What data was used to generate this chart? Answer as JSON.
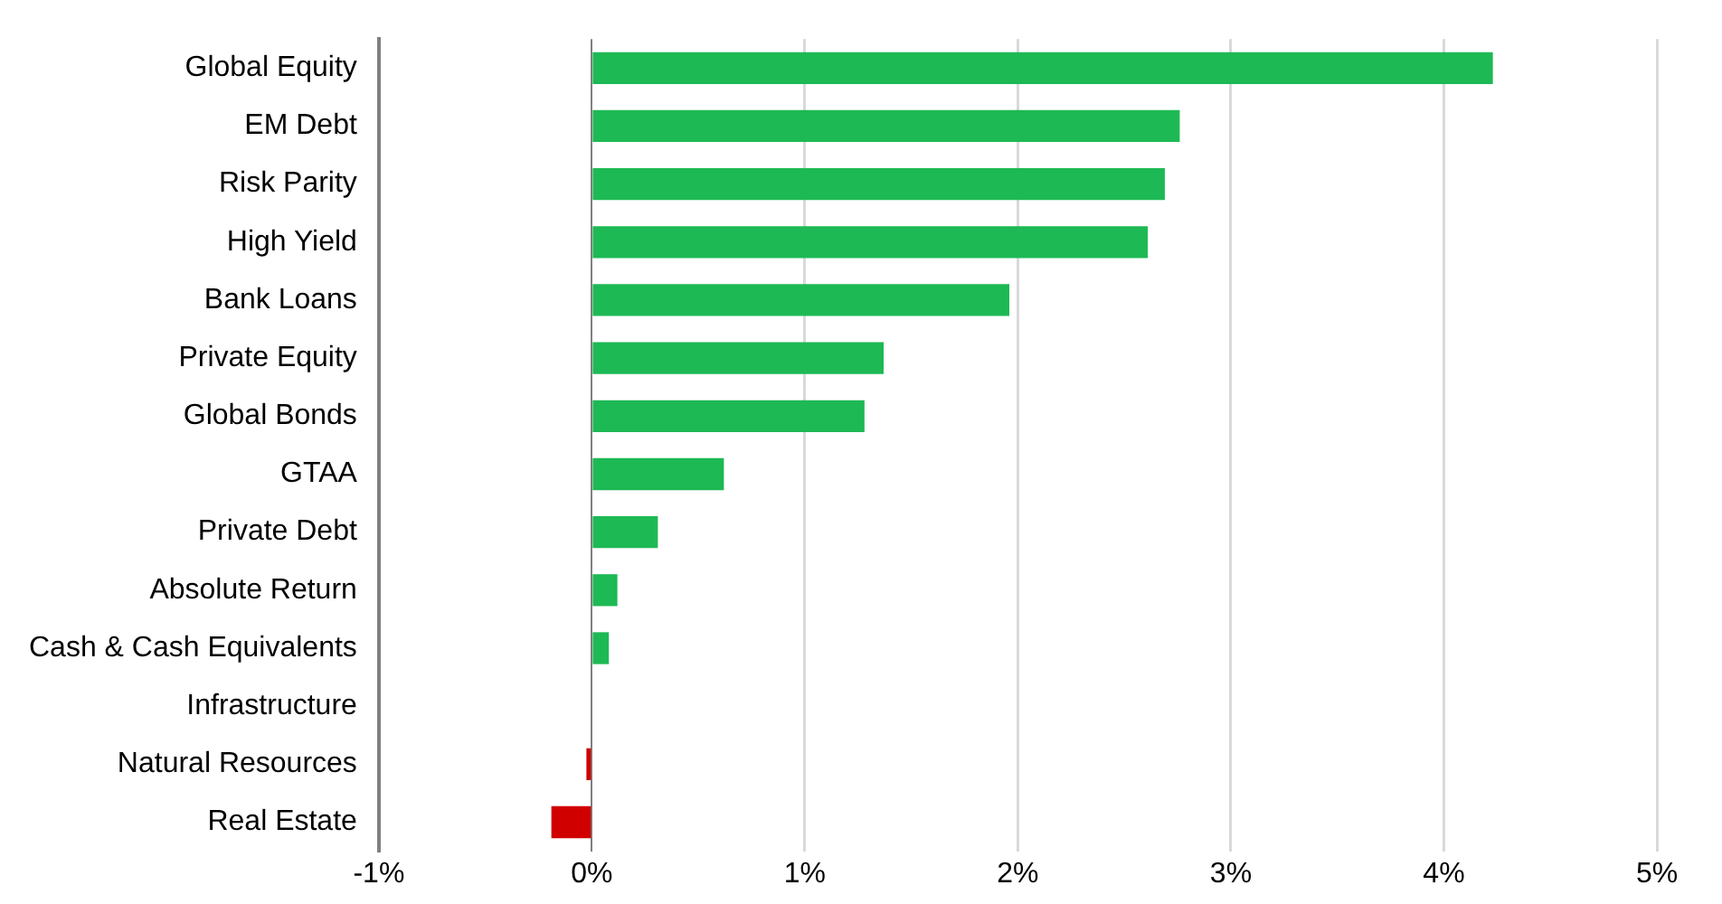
{
  "chart_data": {
    "type": "bar",
    "orientation": "horizontal",
    "categories": [
      "Global Equity",
      "EM Debt",
      "Risk Parity",
      "High Yield",
      "Bank Loans",
      "Private Equity",
      "Global Bonds",
      "GTAA",
      "Private Debt",
      "Absolute Return",
      "Cash & Cash Equivalents",
      "Infrastructure",
      "Natural Resources",
      "Real Estate"
    ],
    "values": [
      4.23,
      2.76,
      2.69,
      2.61,
      1.96,
      1.37,
      1.28,
      0.62,
      0.31,
      0.12,
      0.08,
      null,
      -0.01,
      -0.19
    ],
    "colors": [
      "#1db954",
      "#1db954",
      "#1db954",
      "#1db954",
      "#1db954",
      "#1db954",
      "#1db954",
      "#1db954",
      "#1db954",
      "#1db954",
      "#1db954",
      "#1db954",
      "#d00000",
      "#d00000"
    ],
    "xlim": [
      -1,
      5
    ],
    "xticks": [
      {
        "value": -1,
        "label": "-1%"
      },
      {
        "value": 0,
        "label": "0%"
      },
      {
        "value": 1,
        "label": "1%"
      },
      {
        "value": 2,
        "label": "2%"
      },
      {
        "value": 3,
        "label": "3%"
      },
      {
        "value": 4,
        "label": "4%"
      },
      {
        "value": 5,
        "label": "5%"
      }
    ],
    "grid": "x",
    "legend": false
  }
}
